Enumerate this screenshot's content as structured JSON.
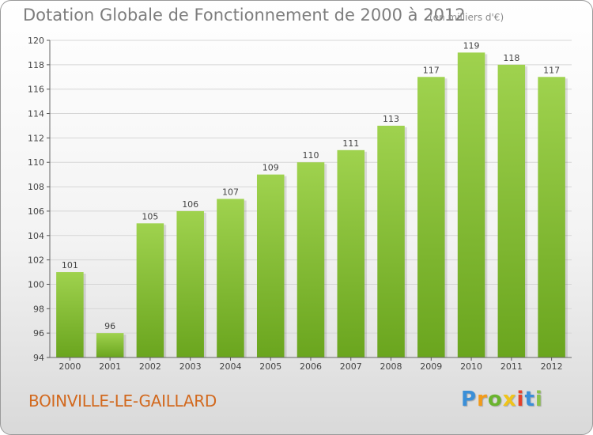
{
  "header": {
    "title": "Dotation Globale de Fonctionnement de 2000 à 2012",
    "subtitle": "(en milliers d'€)"
  },
  "footer": {
    "commune": "BOINVILLE-LE-GAILLARD",
    "logo": [
      "P",
      "r",
      "o",
      "x",
      "i",
      "t",
      "i"
    ]
  },
  "colors": {
    "bar_top": "#9fd24e",
    "bar_bottom": "#6aa51e",
    "grid": "#d6d6d6",
    "title": "#7d7d7d",
    "commune": "#d2691e"
  },
  "chart_data": {
    "type": "bar",
    "title": "Dotation Globale de Fonctionnement de 2000 à 2012",
    "subtitle": "(en milliers d'€)",
    "categories": [
      "2000",
      "2001",
      "2002",
      "2003",
      "2004",
      "2005",
      "2006",
      "2007",
      "2008",
      "2009",
      "2010",
      "2011",
      "2012"
    ],
    "values": [
      101,
      96,
      105,
      106,
      107,
      109,
      110,
      111,
      113,
      117,
      119,
      118,
      117
    ],
    "data_labels": [
      "101",
      "96",
      "105",
      "106",
      "107",
      "109",
      "110",
      "111",
      "113",
      "117",
      "119",
      "118",
      "117"
    ],
    "xlabel": "",
    "ylabel": "",
    "ylim": [
      94,
      120
    ],
    "yticks": [
      94,
      96,
      98,
      100,
      102,
      104,
      106,
      108,
      110,
      112,
      114,
      116,
      118,
      120
    ],
    "grid": true,
    "legend": "none"
  }
}
